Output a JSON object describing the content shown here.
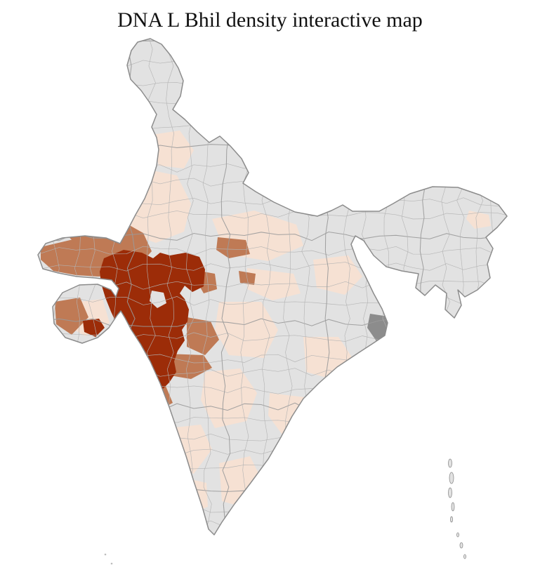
{
  "page": {
    "title": "DNA L Bhil density interactive map",
    "background": "#ffffff"
  },
  "map": {
    "label": "India district-level density choropleth",
    "palette": {
      "no_data": "#e2e2e2",
      "low": "#f6e1d3",
      "medium": "#bf7a55",
      "high": "#9c2c08",
      "masked": "#8c8c8c",
      "district_border": "#b3b3b3",
      "outline": "#8c8c8c"
    },
    "legend_levels": [
      "no_data",
      "low",
      "medium",
      "high"
    ]
  }
}
